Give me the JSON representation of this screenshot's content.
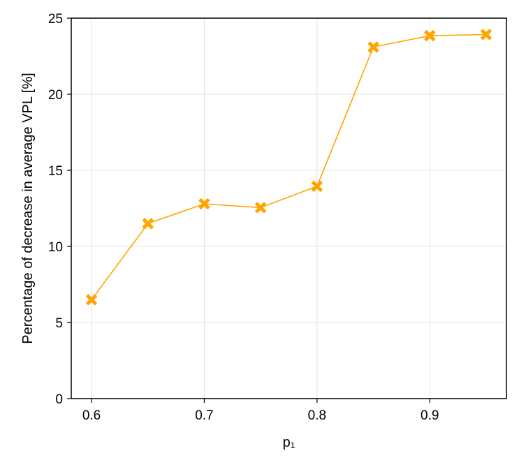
{
  "chart_data": {
    "type": "line",
    "title": "",
    "xlabel": "p₁",
    "ylabel": "Percentage of decrease in average VPL [%]",
    "xlim": [
      0.582,
      0.968
    ],
    "ylim": [
      0,
      25
    ],
    "xticks": [
      0.6,
      0.7,
      0.8,
      0.9
    ],
    "xtick_labels": [
      "0.6",
      "0.7",
      "0.8",
      "0.9"
    ],
    "yticks": [
      0,
      5,
      10,
      15,
      20,
      25
    ],
    "ytick_labels": [
      "0",
      "5",
      "10",
      "15",
      "20",
      "25"
    ],
    "grid": true,
    "legend": "none",
    "series": [
      {
        "color": "#FFA500",
        "marker": "x-filled",
        "x": [
          0.6,
          0.65,
          0.7,
          0.75,
          0.8,
          0.85,
          0.9,
          0.95
        ],
        "y": [
          6.5,
          11.5,
          12.8,
          12.55,
          13.95,
          23.1,
          23.85,
          23.92
        ]
      }
    ]
  }
}
